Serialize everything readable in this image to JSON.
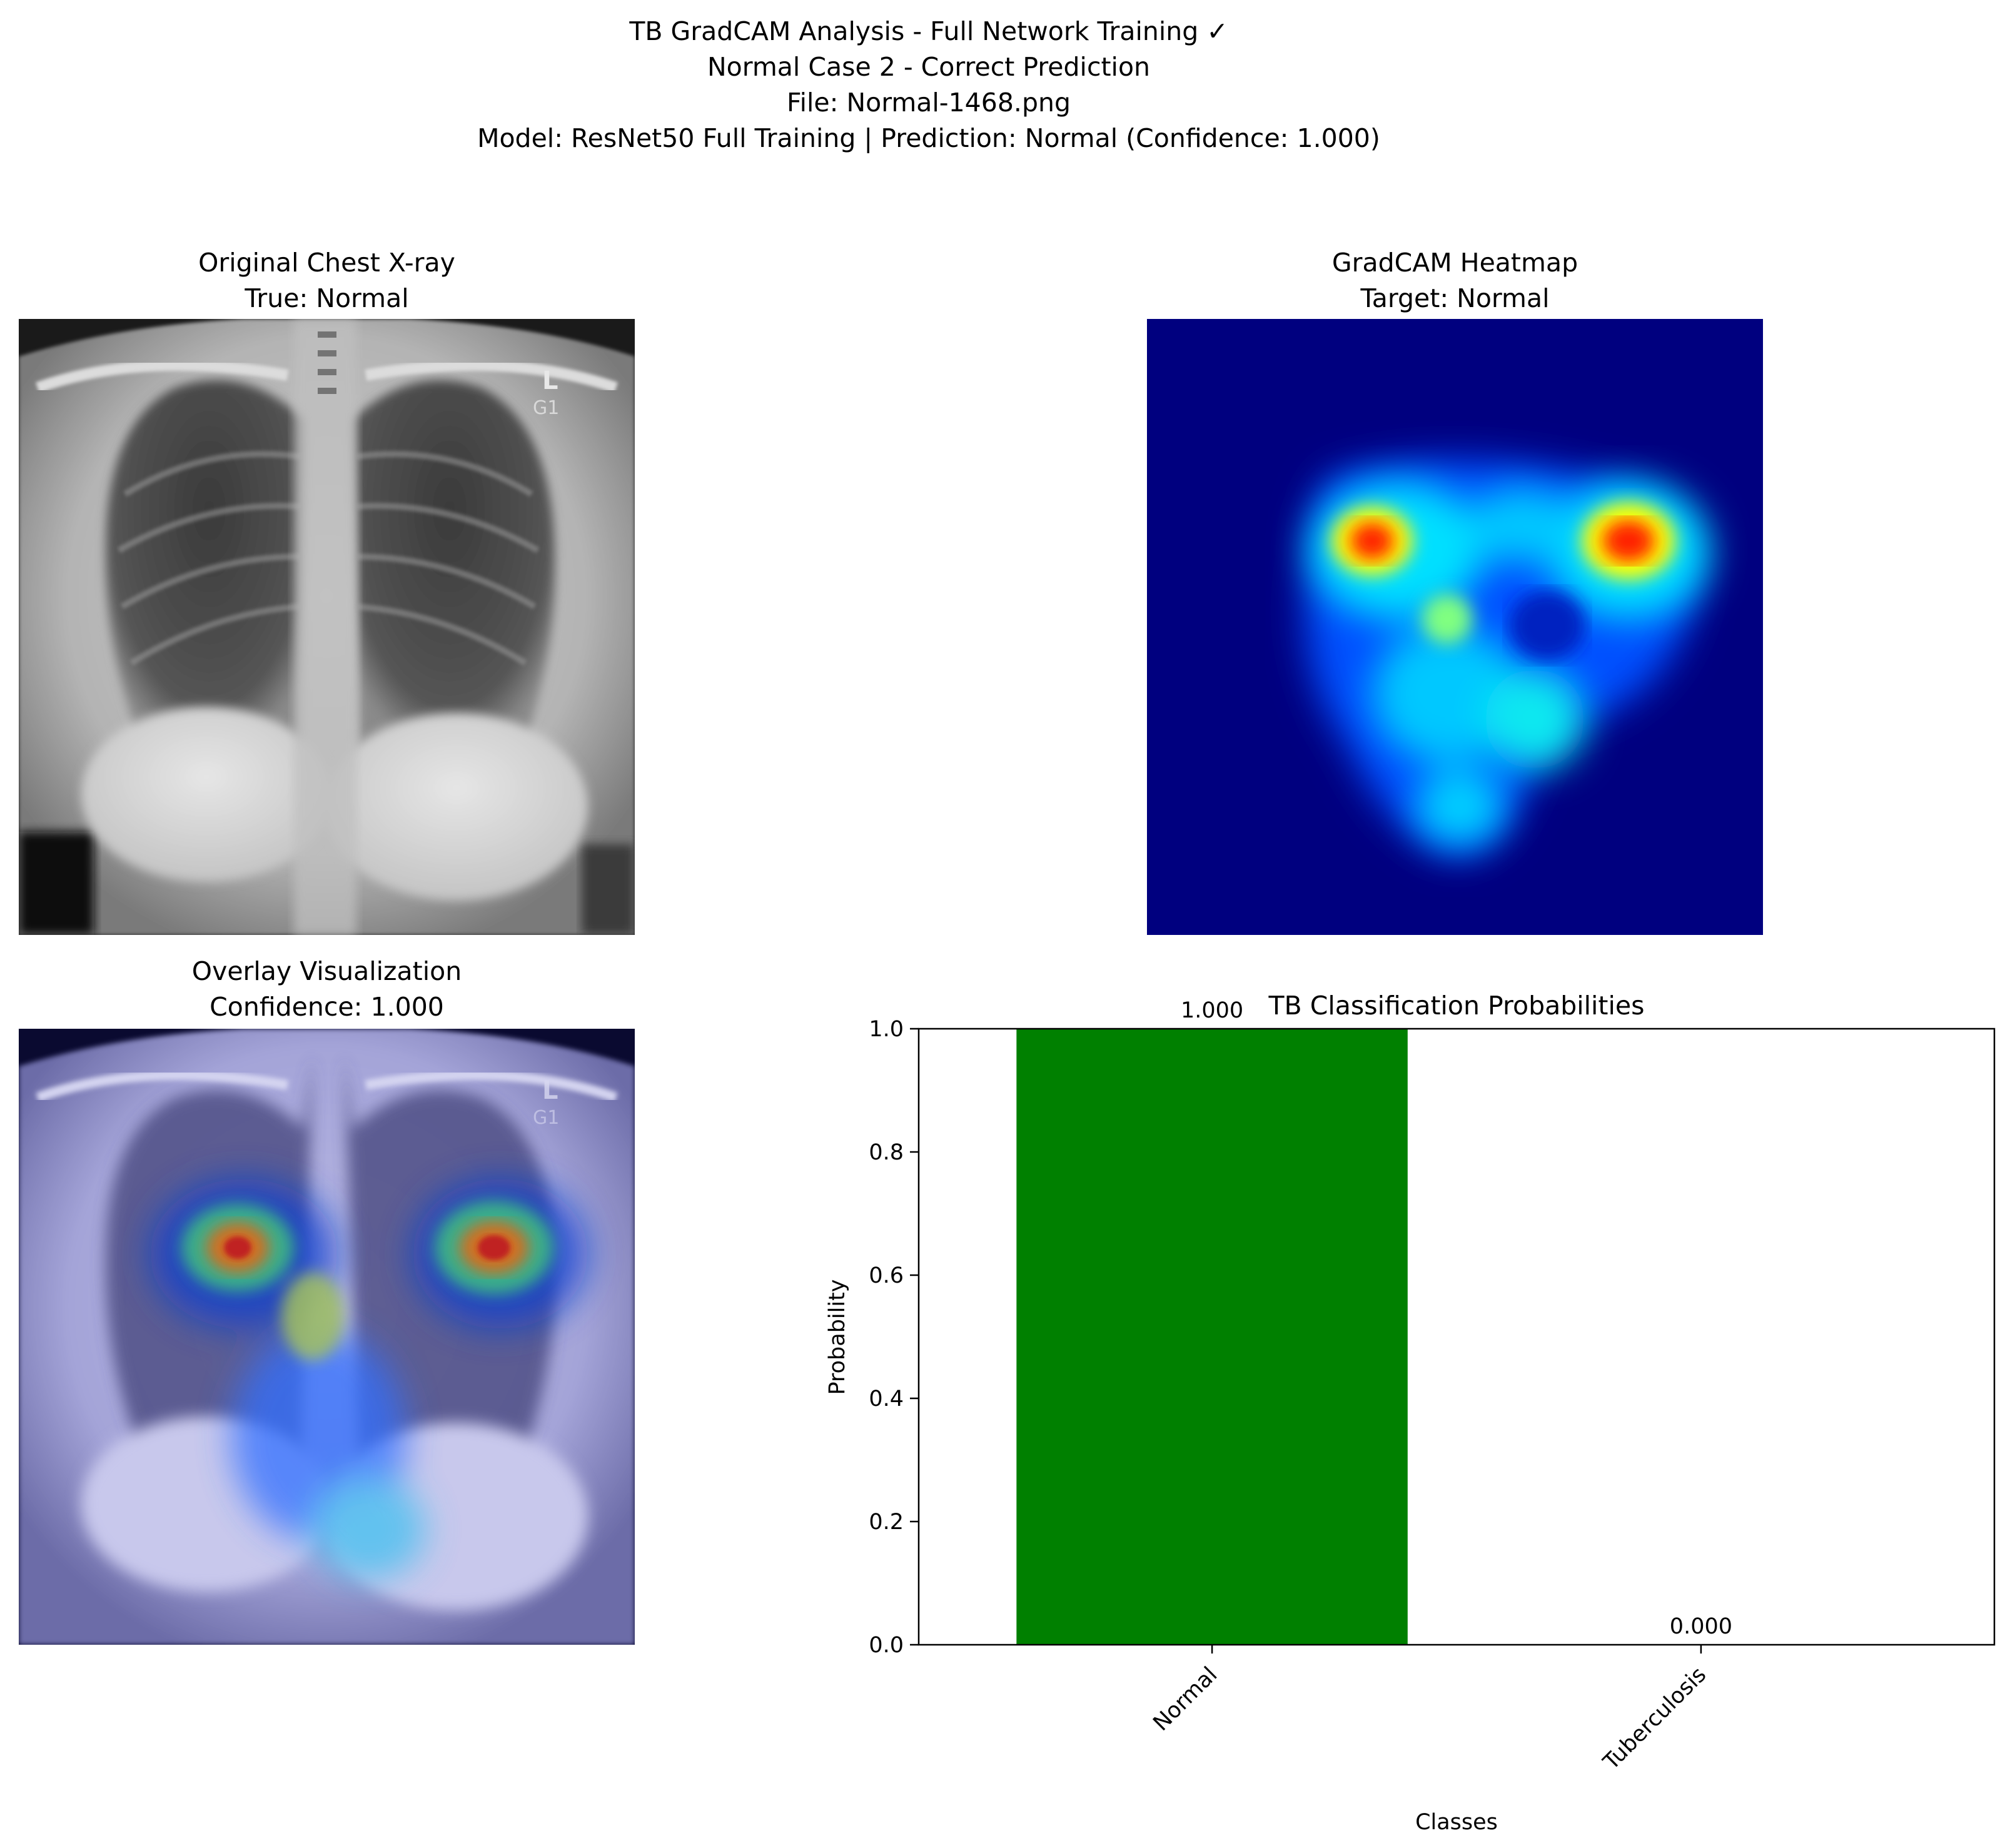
{
  "figure": {
    "title_lines": [
      "TB GradCAM Analysis - Full Network Training ✓",
      "Normal Case 2 - Correct Prediction",
      "File: Normal-1468.png",
      "Model: ResNet50 Full Training | Prediction: Normal (Confidence: 1.000)"
    ]
  },
  "panels": {
    "original": {
      "title": "Original Chest X-ray",
      "subtitle": "True: Normal",
      "marker_letter": "L",
      "marker_code": "G1"
    },
    "heatmap": {
      "title": "GradCAM Heatmap",
      "subtitle": "Target: Normal"
    },
    "overlay": {
      "title": "Overlay Visualization",
      "subtitle": "Confidence: 1.000",
      "marker_letter": "L",
      "marker_code": "G1"
    }
  },
  "chart_data": {
    "type": "bar",
    "title": "TB Classification Probabilities",
    "xlabel": "Classes",
    "ylabel": "Probability",
    "categories": [
      "Normal",
      "Tuberculosis"
    ],
    "values": [
      1.0,
      0.0
    ],
    "value_labels": [
      "1.000",
      "0.000"
    ],
    "colors": [
      "#008000",
      "#ff0000"
    ],
    "ylim": [
      0,
      1.0
    ],
    "yticks": [
      "0.0",
      "0.2",
      "0.4",
      "0.6",
      "0.8",
      "1.0"
    ],
    "grid": false
  }
}
